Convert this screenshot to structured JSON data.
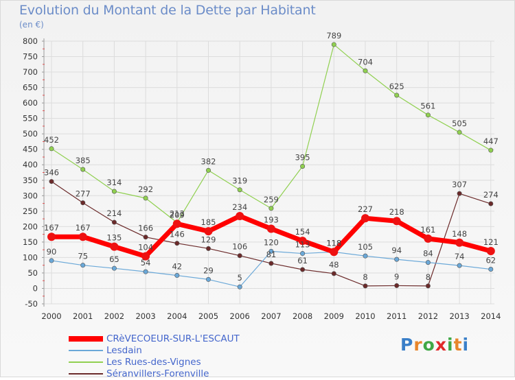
{
  "header": {
    "title": "Evolution du Montant de la Dette par Habitant",
    "unit": "(en €)"
  },
  "logo": {
    "text": "Proxiti",
    "colors": [
      "#3a7fc8",
      "#e8862c",
      "#3fa845",
      "#e02a2a",
      "#3fa845",
      "#e8862c",
      "#3a7fc8"
    ]
  },
  "chart_data": {
    "type": "line",
    "x": [
      "2000",
      "2001",
      "2002",
      "2003",
      "2004",
      "2005",
      "2006",
      "2007",
      "2008",
      "2009",
      "2010",
      "2011",
      "2012",
      "2013",
      "2014"
    ],
    "ylim": [
      -50,
      800
    ],
    "yticks": [
      -50,
      0,
      50,
      100,
      150,
      200,
      250,
      300,
      350,
      400,
      450,
      500,
      550,
      600,
      650,
      700,
      750,
      800
    ],
    "grid": true,
    "legend_position": "bottom-left",
    "series": [
      {
        "name": "Les Rues-des-Vignes",
        "color": "#90d050",
        "width": 1.2,
        "marker": "#90d050",
        "values": [
          452,
          385,
          314,
          292,
          213,
          382,
          319,
          259,
          395,
          789,
          704,
          625,
          561,
          505,
          447
        ]
      },
      {
        "name": "Séranvillers-Forenville",
        "color": "#6b2a2a",
        "width": 1.2,
        "marker": "#6b2a2a",
        "values": [
          346,
          277,
          214,
          166,
          146,
          129,
          106,
          81,
          61,
          48,
          8,
          9,
          8,
          307,
          274
        ]
      },
      {
        "name": "Lesdain",
        "color": "#6aa8d8",
        "width": 1.2,
        "marker": "#6aa8d8",
        "values": [
          90,
          75,
          65,
          54,
          42,
          29,
          5,
          120,
          113,
          118,
          105,
          94,
          84,
          74,
          62
        ]
      },
      {
        "name": "CRèVECOEUR-SUR-L'ESCAUT",
        "color": "#ff0000",
        "width": 7,
        "marker": "#ee1111",
        "values": [
          167,
          167,
          135,
          104,
          209,
          185,
          234,
          193,
          154,
          118,
          227,
          218,
          161,
          148,
          121
        ]
      }
    ],
    "legend_order": [
      3,
      2,
      0,
      1
    ]
  }
}
